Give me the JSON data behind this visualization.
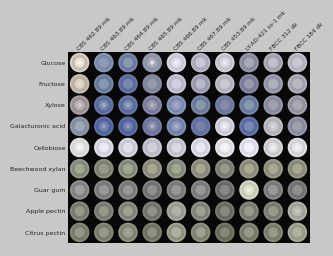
{
  "col_labels": [
    "CBS 462.89 mk",
    "CBS 463.89 mk",
    "CBS 464.89 mk",
    "CBS 465.89 mk",
    "CBS 466.89 mk",
    "CBS 467.89 mk",
    "CBS 453.89 mk",
    "LY-AD-421 ss-1 mk",
    "FBCC 312 dk",
    "FBCC 184 dk"
  ],
  "row_labels": [
    "Glucose",
    "Fructose",
    "Xylose",
    "Galacturonic acid",
    "Cellobiose",
    "Beechwood xylan",
    "Guar gum",
    "Apple pectin",
    "Citrus pectin"
  ],
  "fig_bg": "#c8c8c8",
  "panel_bg": "#080808",
  "col_label_fontsize": 4.2,
  "row_label_fontsize": 4.5,
  "colony_data": [
    [
      {
        "outer": "#d8d0c0",
        "mid": "#c0bab0",
        "inner": "#e8e0d0",
        "center": "#f8f0e0",
        "has_center": true
      },
      {
        "outer": "#8898b0",
        "mid": "#7888a8",
        "inner": "#9098b8",
        "center": "#a0a8c0",
        "has_center": false
      },
      {
        "outer": "#7888a8",
        "mid": "#6878a0",
        "inner": "#8898b0",
        "center": "#98a8c0",
        "has_center": false
      },
      {
        "outer": "#9898a8",
        "mid": "#8898a8",
        "inner": "#a8a8b8",
        "center": "#e0e0e8",
        "has_center": true
      },
      {
        "outer": "#d8d8e0",
        "mid": "#c8c8d8",
        "inner": "#e0e0e8",
        "center": "#f0f0f8",
        "has_center": true
      },
      {
        "outer": "#b8b8c8",
        "mid": "#a8a8b8",
        "inner": "#c8c8d8",
        "center": "#d8d8e8",
        "has_center": false
      },
      {
        "outer": "#d0d0d8",
        "mid": "#c0c0c8",
        "inner": "#d8d8e0",
        "center": "#e8e8f0",
        "has_center": true
      },
      {
        "outer": "#9898a8",
        "mid": "#8888a0",
        "inner": "#a8a8b8",
        "center": "#b8b8c8",
        "has_center": false
      },
      {
        "outer": "#b0b0b8",
        "mid": "#a0a0b0",
        "inner": "#c0c0c8",
        "center": "#d0d0d8",
        "has_center": false
      },
      {
        "outer": "#c0c0c8",
        "mid": "#b0b0c0",
        "inner": "#c8c8d0",
        "center": "#d8d8e0",
        "has_center": false
      }
    ],
    [
      {
        "outer": "#c8c0b0",
        "mid": "#b8b0a0",
        "inner": "#d8d0c0",
        "center": "#e8e0d0",
        "has_center": true
      },
      {
        "outer": "#7888a8",
        "mid": "#6878a0",
        "inner": "#8898b0",
        "center": "#98a8c0",
        "has_center": false
      },
      {
        "outer": "#6878a0",
        "mid": "#5868a0",
        "inner": "#7888a8",
        "center": "#98a8c8",
        "has_center": false
      },
      {
        "outer": "#8888a0",
        "mid": "#7888a0",
        "inner": "#9898a8",
        "center": "#b8b8c8",
        "has_center": false
      },
      {
        "outer": "#c8c8d8",
        "mid": "#b8b8c8",
        "inner": "#d0d0e0",
        "center": "#e0e0f0",
        "has_center": false
      },
      {
        "outer": "#a8a8b8",
        "mid": "#9898b0",
        "inner": "#b8b8c8",
        "center": "#c8c8d8",
        "has_center": false
      },
      {
        "outer": "#c0c0c8",
        "mid": "#b0b0c0",
        "inner": "#c8c8d0",
        "center": "#d8d8e0",
        "has_center": false
      },
      {
        "outer": "#8888a0",
        "mid": "#7878a0",
        "inner": "#9898a8",
        "center": "#a8a8b8",
        "has_center": false
      },
      {
        "outer": "#a0a0b0",
        "mid": "#9090a8",
        "inner": "#b0b0b8",
        "center": "#c0c0c8",
        "has_center": false
      },
      {
        "outer": "#b0b0b8",
        "mid": "#a0a0b0",
        "inner": "#b8b8c0",
        "center": "#c8c8d0",
        "has_center": false
      }
    ],
    [
      {
        "outer": "#a8a0a0",
        "mid": "#989090",
        "inner": "#b8b0b0",
        "center": "#d0c8c8",
        "has_center": true
      },
      {
        "outer": "#6878a0",
        "mid": "#5868a0",
        "inner": "#7888a8",
        "center": "#98a8c8",
        "has_center": true
      },
      {
        "outer": "#6878a0",
        "mid": "#5868a0",
        "inner": "#7888a8",
        "center": "#98a8c8",
        "has_center": true
      },
      {
        "outer": "#8888a0",
        "mid": "#7878a0",
        "inner": "#9898a8",
        "center": "#b0b0c0",
        "has_center": true
      },
      {
        "outer": "#8898b8",
        "mid": "#7888b0",
        "inner": "#9898c0",
        "center": "#a8a8c8",
        "has_center": true
      },
      {
        "outer": "#7888a0",
        "mid": "#6878a0",
        "inner": "#8898a8",
        "center": "#98a8b8",
        "has_center": false
      },
      {
        "outer": "#7880a0",
        "mid": "#6878a0",
        "inner": "#8888a8",
        "center": "#9898b8",
        "has_center": false
      },
      {
        "outer": "#7888a8",
        "mid": "#6878a0",
        "inner": "#8898b0",
        "center": "#98a8c0",
        "has_center": false
      },
      {
        "outer": "#9898a8",
        "mid": "#8888a0",
        "inner": "#a0a0b0",
        "center": "#b0b0c0",
        "has_center": false
      },
      {
        "outer": "#a0a0a8",
        "mid": "#9090a0",
        "inner": "#a8a8b0",
        "center": "#b8b8c0",
        "has_center": false
      }
    ],
    [
      {
        "outer": "#9098a8",
        "mid": "#8090a0",
        "inner": "#a0a8b8",
        "center": "#b0b8c8",
        "has_center": false
      },
      {
        "outer": "#6070a0",
        "mid": "#5060a0",
        "inner": "#7080a8",
        "center": "#9898c0",
        "has_center": true
      },
      {
        "outer": "#6070a0",
        "mid": "#5060a0",
        "inner": "#7080a8",
        "center": "#9898c0",
        "has_center": true
      },
      {
        "outer": "#7878a0",
        "mid": "#6878a0",
        "inner": "#8888a8",
        "center": "#b0b0c8",
        "has_center": true
      },
      {
        "outer": "#8090b0",
        "mid": "#7080a8",
        "inner": "#9098b8",
        "center": "#a8b0c8",
        "has_center": true
      },
      {
        "outer": "#6878a8",
        "mid": "#6070a0",
        "inner": "#7880a8",
        "center": "#a0a8c0",
        "has_center": false
      },
      {
        "outer": "#d8d8e0",
        "mid": "#c8c8d8",
        "inner": "#e0e0e8",
        "center": "#f0f0f8",
        "has_center": true
      },
      {
        "outer": "#6878a8",
        "mid": "#5868a0",
        "inner": "#7888b0",
        "center": "#98a8c0",
        "has_center": false
      },
      {
        "outer": "#c0c0c0",
        "mid": "#b0b0b8",
        "inner": "#c8c8c8",
        "center": "#d8d8d8",
        "has_center": true
      },
      {
        "outer": "#9898a8",
        "mid": "#8888a0",
        "inner": "#a0a0a8",
        "center": "#b0b0b8",
        "has_center": false
      }
    ],
    [
      {
        "outer": "#e0e0e0",
        "mid": "#d8d8d8",
        "inner": "#e8e8e8",
        "center": "#f8f8f8",
        "has_center": true
      },
      {
        "outer": "#e0e0e8",
        "mid": "#d0d0d8",
        "inner": "#e8e8f0",
        "center": "#f0f0f8",
        "has_center": true
      },
      {
        "outer": "#d8d8e0",
        "mid": "#c8c8d0",
        "inner": "#e0e0e8",
        "center": "#f8f8f8",
        "has_center": false
      },
      {
        "outer": "#c8c8d0",
        "mid": "#b8b8c8",
        "inner": "#d0d0d8",
        "center": "#e0e0e8",
        "has_center": false
      },
      {
        "outer": "#d0d0d8",
        "mid": "#c0c0c8",
        "inner": "#d8d8e0",
        "center": "#e8e8f0",
        "has_center": false
      },
      {
        "outer": "#e0e0e8",
        "mid": "#d0d0d8",
        "inner": "#e8e8f0",
        "center": "#f8f8ff",
        "has_center": false
      },
      {
        "outer": "#e8e8e8",
        "mid": "#d8d8e0",
        "inner": "#f0f0f0",
        "center": "#f8f8f8",
        "has_center": true
      },
      {
        "outer": "#e8e8f0",
        "mid": "#d8d8e8",
        "inner": "#f0f0f8",
        "center": "#f8f8ff",
        "has_center": false
      },
      {
        "outer": "#d8d8d8",
        "mid": "#c8c8d0",
        "inner": "#e0e0e0",
        "center": "#f0f0f0",
        "has_center": true
      },
      {
        "outer": "#e0e0e0",
        "mid": "#d0d0d8",
        "inner": "#e8e8e8",
        "center": "#f0f0f8",
        "has_center": true
      }
    ],
    [
      {
        "outer": "#909888",
        "mid": "#828878",
        "inner": "#a0a890",
        "center": "#b0b8a0",
        "has_center": false
      },
      {
        "outer": "#8a9080",
        "mid": "#7a8070",
        "inner": "#9a9888",
        "center": "#aaa898",
        "has_center": false
      },
      {
        "outer": "#909888",
        "mid": "#808878",
        "inner": "#a0a890",
        "center": "#b0b8a0",
        "has_center": false
      },
      {
        "outer": "#989888",
        "mid": "#888878",
        "inner": "#a8a890",
        "center": "#b8b8a0",
        "has_center": false
      },
      {
        "outer": "#909888",
        "mid": "#808878",
        "inner": "#a0a890",
        "center": "#b0b8a0",
        "has_center": false
      },
      {
        "outer": "#989888",
        "mid": "#888878",
        "inner": "#a8a890",
        "center": "#b8b8a0",
        "has_center": false
      },
      {
        "outer": "#888880",
        "mid": "#787870",
        "inner": "#989888",
        "center": "#a8a898",
        "has_center": false
      },
      {
        "outer": "#9a9888",
        "mid": "#8a8878",
        "inner": "#aaa890",
        "center": "#bab8a0",
        "has_center": false
      },
      {
        "outer": "#9a9888",
        "mid": "#8a8878",
        "inner": "#aaa890",
        "center": "#bab8a0",
        "has_center": false
      },
      {
        "outer": "#989888",
        "mid": "#888878",
        "inner": "#a8a890",
        "center": "#b8b8a0",
        "has_center": false
      }
    ],
    [
      {
        "outer": "#909090",
        "mid": "#808080",
        "inner": "#a0a0a0",
        "center": "#b0b0b0",
        "has_center": false
      },
      {
        "outer": "#888888",
        "mid": "#787878",
        "inner": "#989898",
        "center": "#a8a8a8",
        "has_center": false
      },
      {
        "outer": "#888888",
        "mid": "#787878",
        "inner": "#989898",
        "center": "#a8a8a8",
        "has_center": false
      },
      {
        "outer": "#808080",
        "mid": "#707070",
        "inner": "#909090",
        "center": "#a0a0a0",
        "has_center": false
      },
      {
        "outer": "#888888",
        "mid": "#787878",
        "inner": "#989898",
        "center": "#a8a8a8",
        "has_center": false
      },
      {
        "outer": "#888888",
        "mid": "#787878",
        "inner": "#989898",
        "center": "#a8a8a8",
        "has_center": false
      },
      {
        "outer": "#787878",
        "mid": "#686868",
        "inner": "#888888",
        "center": "#989898",
        "has_center": false
      },
      {
        "outer": "#d8d8c8",
        "mid": "#c8c8b8",
        "inner": "#e0e0d0",
        "center": "#f0f0e0",
        "has_center": true
      },
      {
        "outer": "#888888",
        "mid": "#787878",
        "inner": "#989898",
        "center": "#a8a8a8",
        "has_center": false
      },
      {
        "outer": "#808080",
        "mid": "#707070",
        "inner": "#909090",
        "center": "#a0a0a0",
        "has_center": false
      }
    ],
    [
      {
        "outer": "#888880",
        "mid": "#787870",
        "inner": "#989888",
        "center": "#a8a898",
        "has_center": false
      },
      {
        "outer": "#888880",
        "mid": "#787870",
        "inner": "#989888",
        "center": "#a8a898",
        "has_center": false
      },
      {
        "outer": "#909088",
        "mid": "#808078",
        "inner": "#a0a090",
        "center": "#b0b0a0",
        "has_center": false
      },
      {
        "outer": "#808078",
        "mid": "#707068",
        "inner": "#909088",
        "center": "#a0a098",
        "has_center": false
      },
      {
        "outer": "#a8a8a0",
        "mid": "#989890",
        "inner": "#b0b0a8",
        "center": "#c0c0b8",
        "has_center": false
      },
      {
        "outer": "#909088",
        "mid": "#808078",
        "inner": "#a0a090",
        "center": "#b0b0a0",
        "has_center": false
      },
      {
        "outer": "#787870",
        "mid": "#686860",
        "inner": "#888880",
        "center": "#989890",
        "has_center": false
      },
      {
        "outer": "#888880",
        "mid": "#787870",
        "inner": "#989888",
        "center": "#a8a898",
        "has_center": false
      },
      {
        "outer": "#888880",
        "mid": "#787870",
        "inner": "#989888",
        "center": "#a8a898",
        "has_center": false
      },
      {
        "outer": "#b0b0a8",
        "mid": "#a0a098",
        "inner": "#b8b8b0",
        "center": "#c8c8c0",
        "has_center": true
      }
    ],
    [
      {
        "outer": "#888878",
        "mid": "#787868",
        "inner": "#989888",
        "center": "#a8a898",
        "has_center": false
      },
      {
        "outer": "#888878",
        "mid": "#787868",
        "inner": "#989888",
        "center": "#a8a898",
        "has_center": false
      },
      {
        "outer": "#909080",
        "mid": "#808070",
        "inner": "#a0a090",
        "center": "#b0b0a0",
        "has_center": false
      },
      {
        "outer": "#808070",
        "mid": "#707060",
        "inner": "#909080",
        "center": "#a0a090",
        "has_center": false
      },
      {
        "outer": "#a0a090",
        "mid": "#909080",
        "inner": "#b0b0a0",
        "center": "#c0c0b0",
        "has_center": false
      },
      {
        "outer": "#909080",
        "mid": "#808070",
        "inner": "#a0a090",
        "center": "#b0b0a0",
        "has_center": false
      },
      {
        "outer": "#787868",
        "mid": "#686858",
        "inner": "#888878",
        "center": "#989888",
        "has_center": false
      },
      {
        "outer": "#888878",
        "mid": "#787868",
        "inner": "#989888",
        "center": "#a8a898",
        "has_center": false
      },
      {
        "outer": "#888878",
        "mid": "#787868",
        "inner": "#989888",
        "center": "#a8a898",
        "has_center": false
      },
      {
        "outer": "#a8a898",
        "mid": "#989888",
        "inner": "#b0b0a0",
        "center": "#c0c0b0",
        "has_center": false
      }
    ]
  ]
}
